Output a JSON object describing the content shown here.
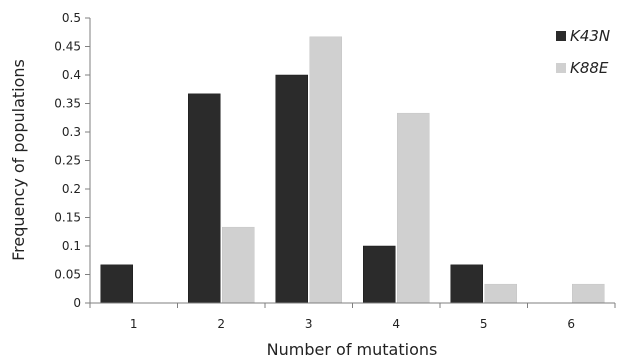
{
  "chart_data": {
    "type": "bar",
    "categories": [
      "1",
      "2",
      "3",
      "4",
      "5",
      "6"
    ],
    "series": [
      {
        "name": "K43N",
        "values": [
          0.067,
          0.367,
          0.4,
          0.1,
          0.067,
          0
        ],
        "color": "#2b2b2b"
      },
      {
        "name": "K88E",
        "values": [
          0,
          0.133,
          0.467,
          0.333,
          0.033,
          0.033
        ],
        "color": "#d0d0d0"
      }
    ],
    "yticks": [
      "0",
      "0.05",
      "0.1",
      "0.15",
      "0.2",
      "0.25",
      "0.3",
      "0.35",
      "0.4",
      "0.45",
      "0.5"
    ],
    "ylim": [
      0,
      0.5
    ],
    "xlabel": "Number of mutations",
    "ylabel": "Frequency of populations",
    "grid": false,
    "legend": "top-right"
  }
}
